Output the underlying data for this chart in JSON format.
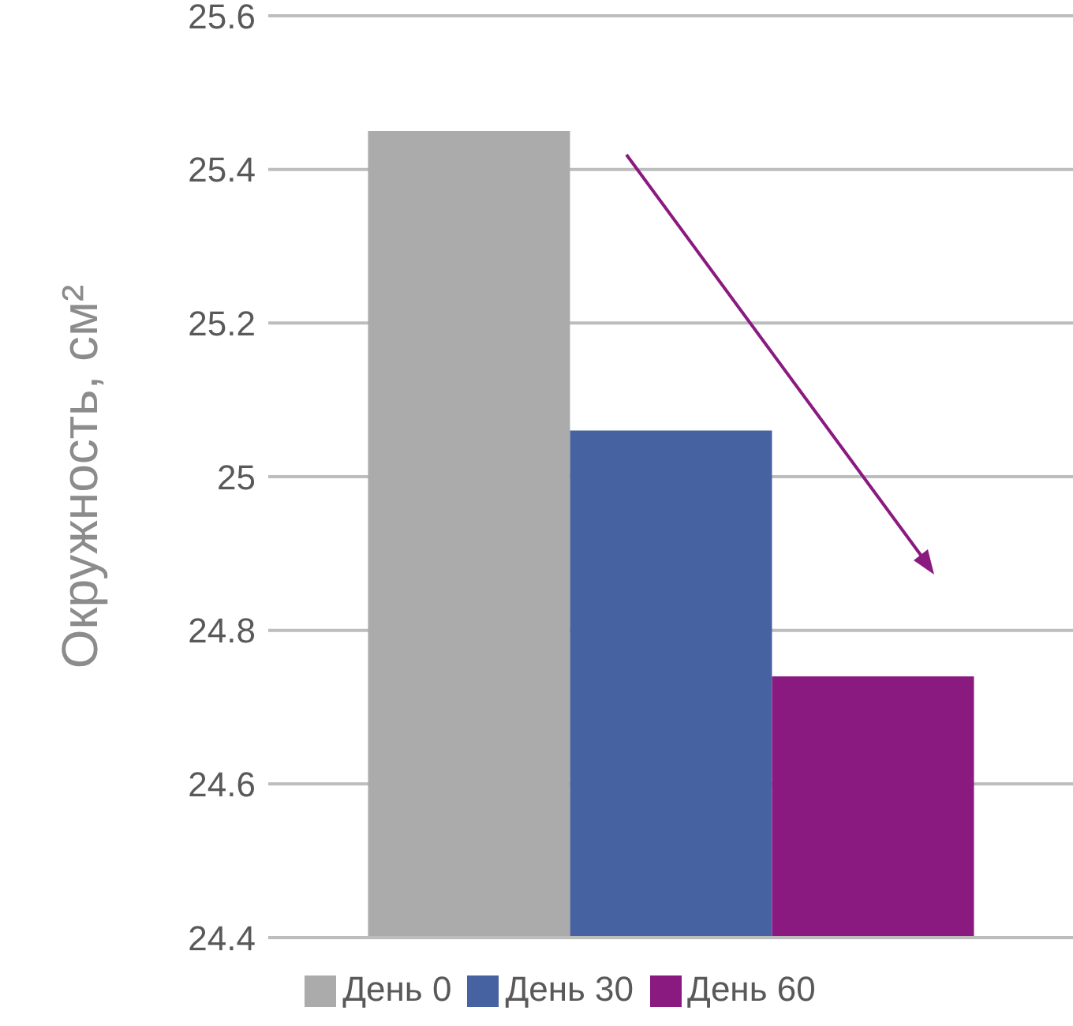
{
  "chart_data": {
    "type": "bar",
    "ylabel": "Окружность, см²",
    "categories": [
      null
    ],
    "series": [
      {
        "name": "День 0",
        "color": "#ababab",
        "values": [
          25.45
        ]
      },
      {
        "name": "День 30",
        "color": "#4762a0",
        "values": [
          25.06
        ]
      },
      {
        "name": "День 60",
        "color": "#8a1a80",
        "values": [
          24.74
        ]
      }
    ],
    "ylim": [
      24.4,
      25.6
    ],
    "yticks": [
      24.4,
      24.6,
      24.8,
      25,
      25.2,
      25.4,
      25.6
    ],
    "grid": "y",
    "legend": "bottom"
  }
}
